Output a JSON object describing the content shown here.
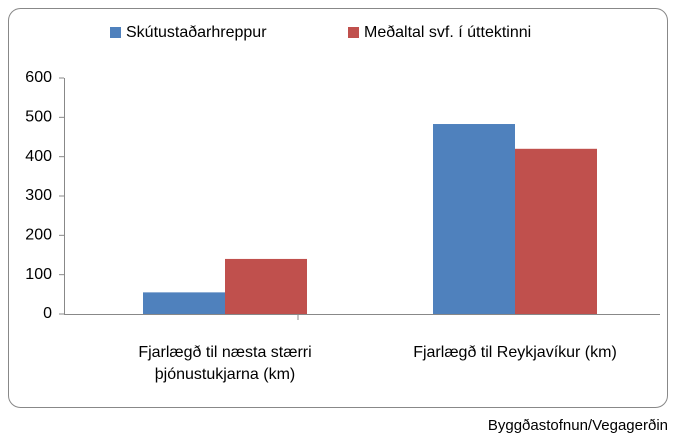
{
  "chart_data": {
    "type": "bar",
    "categories": [
      "Fjarlægð til næsta stærri þjónustukjarna (km)",
      "Fjarlægð til Reykjavíkur (km)"
    ],
    "series": [
      {
        "name": "Skútustaðarhreppur",
        "color": "#4f81bd",
        "values": [
          55,
          483
        ]
      },
      {
        "name": "Meðaltal svf. í úttektinni",
        "color": "#c0504d",
        "values": [
          140,
          420
        ]
      }
    ],
    "ylim": [
      0,
      600
    ],
    "yticks": [
      0,
      100,
      200,
      300,
      400,
      500,
      600
    ],
    "grid": false,
    "legend": "top",
    "source": "Byggðastofnun/Vegagerðin"
  }
}
